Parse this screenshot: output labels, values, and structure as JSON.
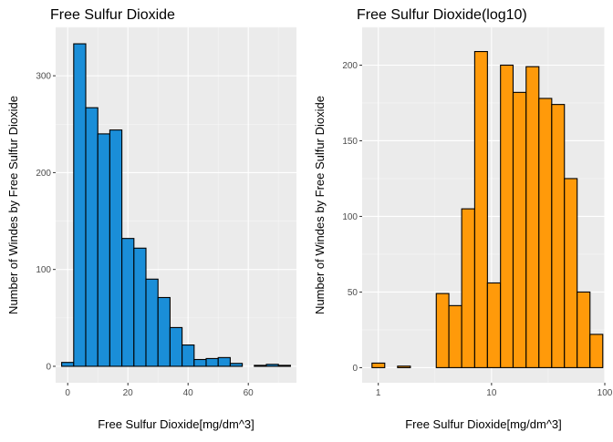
{
  "chart_data": [
    {
      "type": "bar",
      "title": "Free Sulfur Dioxide",
      "xlabel": "Free Sulfur Dioxide[mg/dm^3]",
      "ylabel": "Number of Windes by Free Sulfur Dioxide",
      "x_scale": "linear",
      "xlim": [
        -4,
        76
      ],
      "ylim": [
        -17,
        350
      ],
      "x_ticks": [
        0,
        20,
        40,
        60
      ],
      "x_tick_labels": [
        "0",
        "20",
        "40",
        "60"
      ],
      "y_ticks": [
        0,
        100,
        200,
        300
      ],
      "y_tick_labels": [
        "0",
        "100",
        "200",
        "300"
      ],
      "grid": true,
      "legend": "none",
      "bar_color": "#1a8ed8",
      "bins": [
        {
          "x_start": -2,
          "x_end": 2,
          "value": 4
        },
        {
          "x_start": 2,
          "x_end": 6,
          "value": 333
        },
        {
          "x_start": 6,
          "x_end": 10,
          "value": 267
        },
        {
          "x_start": 10,
          "x_end": 14,
          "value": 240
        },
        {
          "x_start": 14,
          "x_end": 18,
          "value": 244
        },
        {
          "x_start": 18,
          "x_end": 22,
          "value": 132
        },
        {
          "x_start": 22,
          "x_end": 26,
          "value": 122
        },
        {
          "x_start": 26,
          "x_end": 30,
          "value": 90
        },
        {
          "x_start": 30,
          "x_end": 34,
          "value": 71
        },
        {
          "x_start": 34,
          "x_end": 38,
          "value": 40
        },
        {
          "x_start": 38,
          "x_end": 42,
          "value": 22
        },
        {
          "x_start": 42,
          "x_end": 46,
          "value": 7
        },
        {
          "x_start": 46,
          "x_end": 50,
          "value": 8
        },
        {
          "x_start": 50,
          "x_end": 54,
          "value": 9
        },
        {
          "x_start": 54,
          "x_end": 58,
          "value": 3
        },
        {
          "x_start": 58,
          "x_end": 62,
          "value": 0
        },
        {
          "x_start": 62,
          "x_end": 66,
          "value": 1
        },
        {
          "x_start": 66,
          "x_end": 70,
          "value": 2
        },
        {
          "x_start": 70,
          "x_end": 74,
          "value": 1
        }
      ]
    },
    {
      "type": "bar",
      "title": "Free Sulfur Dioxide(log10)",
      "xlabel": "Free Sulfur Dioxide[mg/dm^3]",
      "ylabel": "Number of Windes by Free Sulfur Dioxide",
      "x_scale": "log10",
      "xlim": [
        0.72,
        100
      ],
      "ylim": [
        -10,
        225
      ],
      "x_ticks": [
        1,
        10,
        100
      ],
      "x_tick_labels": [
        "1",
        "10",
        "100"
      ],
      "y_ticks": [
        0,
        50,
        100,
        150,
        200
      ],
      "y_tick_labels": [
        "0",
        "50",
        "100",
        "150",
        "200"
      ],
      "grid": true,
      "legend": "none",
      "bar_color": "#ff9a0a",
      "bins": [
        {
          "x_start": 0.88,
          "x_end": 1.14,
          "value": 3
        },
        {
          "x_start": 1.14,
          "x_end": 1.48,
          "value": 0
        },
        {
          "x_start": 1.48,
          "x_end": 1.92,
          "value": 1
        },
        {
          "x_start": 1.92,
          "x_end": 2.5,
          "value": 0
        },
        {
          "x_start": 2.5,
          "x_end": 3.25,
          "value": 0
        },
        {
          "x_start": 3.25,
          "x_end": 4.2,
          "value": 49
        },
        {
          "x_start": 4.2,
          "x_end": 5.45,
          "value": 41
        },
        {
          "x_start": 5.45,
          "x_end": 7.1,
          "value": 105
        },
        {
          "x_start": 7.1,
          "x_end": 9.2,
          "value": 209
        },
        {
          "x_start": 9.2,
          "x_end": 12.0,
          "value": 56
        },
        {
          "x_start": 12.0,
          "x_end": 15.5,
          "value": 200
        },
        {
          "x_start": 15.5,
          "x_end": 20.2,
          "value": 182
        },
        {
          "x_start": 20.2,
          "x_end": 26.2,
          "value": 199
        },
        {
          "x_start": 26.2,
          "x_end": 34.0,
          "value": 178
        },
        {
          "x_start": 34.0,
          "x_end": 44.0,
          "value": 174
        },
        {
          "x_start": 44.0,
          "x_end": 57.0,
          "value": 125
        },
        {
          "x_start": 57.0,
          "x_end": 74.0,
          "value": 50
        },
        {
          "x_start": 74.0,
          "x_end": 96.0,
          "value": 22
        }
      ]
    }
  ]
}
